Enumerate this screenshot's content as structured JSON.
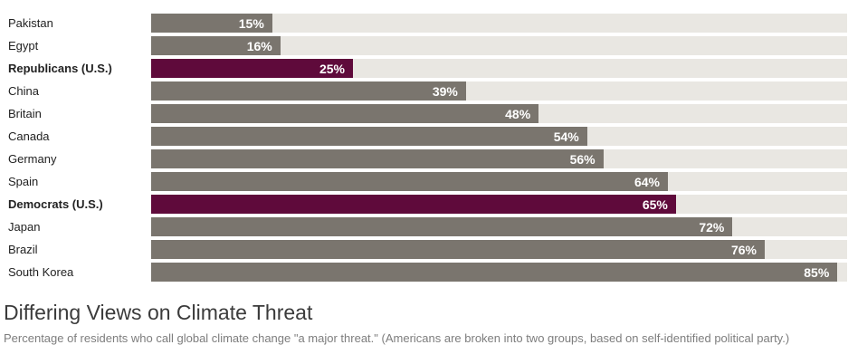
{
  "chart_data": {
    "type": "bar",
    "orientation": "horizontal",
    "title": "Differing Views on Climate Threat",
    "subtitle": "Percentage of residents who call global climate change \"a major threat.\" (Americans are broken into two groups, based on self-identified political party.)",
    "categories": [
      "Pakistan",
      "Egypt",
      "Republicans (U.S.)",
      "China",
      "Britain",
      "Canada",
      "Germany",
      "Spain",
      "Democrats (U.S.)",
      "Japan",
      "Brazil",
      "South Korea"
    ],
    "values": [
      15,
      16,
      25,
      39,
      48,
      54,
      56,
      64,
      65,
      72,
      76,
      85
    ],
    "value_labels": [
      "15%",
      "16%",
      "25%",
      "39%",
      "48%",
      "54%",
      "56%",
      "64%",
      "65%",
      "72%",
      "76%",
      "85%"
    ],
    "highlighted": [
      "Republicans (U.S.)",
      "Democrats (U.S.)"
    ],
    "xlim": [
      0,
      86.2
    ],
    "legend": "none",
    "grid": "off",
    "colors": {
      "bar_default": "#7a756e",
      "bar_highlight": "#5f0a3b",
      "track": "#e9e7e2",
      "value_text": "#ffffff"
    }
  }
}
